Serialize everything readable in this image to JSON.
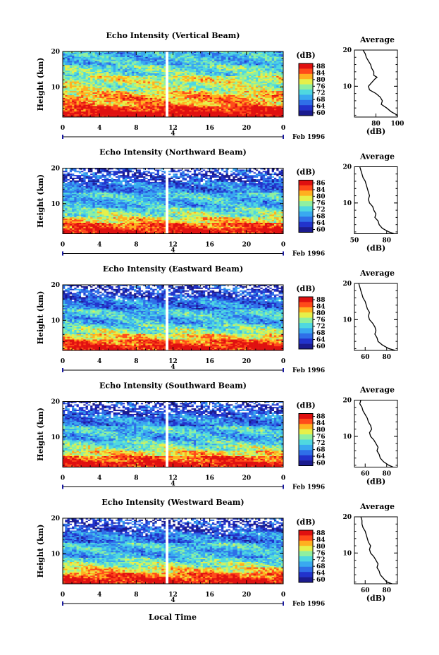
{
  "figure": {
    "xlabel": "Local Time",
    "colors": {
      "scale": [
        "#1b1b8f",
        "#2233cc",
        "#2f6fe8",
        "#39a9f0",
        "#4fd8e0",
        "#8ff0a0",
        "#e6f04a",
        "#ffb020",
        "#ff4a1a",
        "#e01010"
      ],
      "date_tick": "#1a1aa0",
      "gap": "#ffffff"
    }
  },
  "chart_data": [
    {
      "type": "heatmap",
      "title": "Echo Intensity (Vertical Beam)",
      "ylabel": "Height (km)",
      "ylim": [
        1.5,
        20
      ],
      "yticks": [
        "20",
        "10"
      ],
      "xlim": [
        0,
        24
      ],
      "xticks": [
        "0",
        "4",
        "8",
        "12",
        "16",
        "20",
        "0"
      ],
      "date_label": "4",
      "month_label": "Feb 1996",
      "data_gap_hours": [
        11.2,
        11.5
      ],
      "colorbar": {
        "unit": "(dB)",
        "min": 60,
        "max": 88,
        "ticks": [
          "88",
          "84",
          "80",
          "76",
          "72",
          "68",
          "64",
          "60"
        ]
      },
      "average": {
        "title": "Average",
        "xlabel": "(dB)",
        "xlim": [
          60,
          100
        ],
        "xticks": [
          "80",
          "100"
        ],
        "yticks": [
          "20",
          "10"
        ],
        "ylim": [
          1.5,
          20
        ],
        "profile": [
          [
            20,
            68
          ],
          [
            19,
            70
          ],
          [
            18,
            71
          ],
          [
            17,
            73
          ],
          [
            16,
            75
          ],
          [
            15,
            76
          ],
          [
            14,
            78
          ],
          [
            13,
            78
          ],
          [
            12.5,
            81
          ],
          [
            12,
            79
          ],
          [
            11,
            76
          ],
          [
            10,
            73
          ],
          [
            9,
            74
          ],
          [
            8,
            80
          ],
          [
            7,
            84
          ],
          [
            6,
            86
          ],
          [
            5,
            85
          ],
          [
            4,
            90
          ],
          [
            3,
            94
          ],
          [
            2,
            100
          ],
          [
            1.5,
            102
          ]
        ]
      }
    },
    {
      "type": "heatmap",
      "title": "Echo Intensity (Northward Beam)",
      "ylabel": "Height (km)",
      "ylim": [
        1.5,
        20
      ],
      "yticks": [
        "20",
        "10"
      ],
      "xlim": [
        0,
        24
      ],
      "xticks": [
        "0",
        "4",
        "8",
        "12",
        "16",
        "20",
        "0"
      ],
      "date_label": "4",
      "month_label": "Feb 1996",
      "data_gap_hours": [
        11.2,
        11.5
      ],
      "colorbar": {
        "unit": "(dB)",
        "min": 50,
        "max": 86,
        "ticks": [
          "86",
          "84",
          "80",
          "76",
          "72",
          "68",
          "64",
          "60"
        ]
      },
      "average": {
        "title": "Average",
        "xlabel": "(dB)",
        "xlim": [
          50,
          90
        ],
        "xticks": [
          "50",
          "80"
        ],
        "yticks": [
          "20",
          "10"
        ],
        "ylim": [
          1.5,
          20
        ],
        "profile": [
          [
            20,
            55
          ],
          [
            19,
            56
          ],
          [
            18,
            57
          ],
          [
            17,
            58
          ],
          [
            16,
            60
          ],
          [
            15,
            61
          ],
          [
            14,
            62
          ],
          [
            13,
            63
          ],
          [
            12,
            64
          ],
          [
            11,
            63
          ],
          [
            10,
            64
          ],
          [
            9,
            67
          ],
          [
            8,
            68
          ],
          [
            7,
            70
          ],
          [
            6,
            69
          ],
          [
            5,
            72
          ],
          [
            4,
            73
          ],
          [
            3,
            76
          ],
          [
            2,
            82
          ],
          [
            1.5,
            87
          ]
        ]
      }
    },
    {
      "type": "heatmap",
      "title": "Echo Intensity (Eastward Beam)",
      "ylabel": "Height (km)",
      "ylim": [
        1.5,
        20
      ],
      "yticks": [
        "20",
        "10"
      ],
      "xlim": [
        0,
        24
      ],
      "xticks": [
        "0",
        "4",
        "8",
        "12",
        "16",
        "20",
        "0"
      ],
      "date_label": "4",
      "month_label": "Feb 1996",
      "data_gap_hours": [
        11.2,
        11.5
      ],
      "colorbar": {
        "unit": "(dB)",
        "min": 50,
        "max": 88,
        "ticks": [
          "88",
          "84",
          "80",
          "76",
          "72",
          "68",
          "64",
          "60"
        ]
      },
      "average": {
        "title": "Average",
        "xlabel": "",
        "xlim": [
          50,
          90
        ],
        "xticks": [
          "60",
          "80"
        ],
        "yticks": [
          "20",
          "10"
        ],
        "ylim": [
          1.5,
          20
        ],
        "profile": [
          [
            20,
            54
          ],
          [
            19,
            55
          ],
          [
            18,
            56
          ],
          [
            17,
            57
          ],
          [
            16,
            58
          ],
          [
            15,
            60
          ],
          [
            14,
            61
          ],
          [
            13,
            62
          ],
          [
            12,
            64
          ],
          [
            11,
            63
          ],
          [
            10,
            64
          ],
          [
            9,
            67
          ],
          [
            8,
            69
          ],
          [
            7,
            70
          ],
          [
            6,
            69
          ],
          [
            5,
            71
          ],
          [
            4,
            72
          ],
          [
            3,
            76
          ],
          [
            2,
            82
          ],
          [
            1.5,
            88
          ]
        ]
      }
    },
    {
      "type": "heatmap",
      "title": "Echo Intensity (Southward Beam)",
      "ylabel": "Height (km)",
      "ylim": [
        1.5,
        20
      ],
      "yticks": [
        "20",
        "10"
      ],
      "xlim": [
        0,
        24
      ],
      "xticks": [
        "0",
        "4",
        "8",
        "12",
        "16",
        "20",
        "0"
      ],
      "date_label": "4",
      "month_label": "Feb 1996",
      "data_gap_hours": [
        11.2,
        11.5
      ],
      "colorbar": {
        "unit": "(dB)",
        "min": 50,
        "max": 88,
        "ticks": [
          "88",
          "84",
          "80",
          "76",
          "72",
          "68",
          "64",
          "60"
        ]
      },
      "average": {
        "title": "Average",
        "xlabel": "(dB)",
        "xlim": [
          50,
          90
        ],
        "xticks": [
          "60",
          "80"
        ],
        "yticks": [
          "20",
          "10"
        ],
        "ylim": [
          1.5,
          20
        ],
        "profile": [
          [
            20,
            56
          ],
          [
            19,
            55
          ],
          [
            18,
            57
          ],
          [
            17,
            58
          ],
          [
            16,
            60
          ],
          [
            15,
            62
          ],
          [
            14,
            63
          ],
          [
            13,
            65
          ],
          [
            12,
            66
          ],
          [
            11,
            64
          ],
          [
            10,
            65
          ],
          [
            9,
            68
          ],
          [
            8,
            70
          ],
          [
            7,
            72
          ],
          [
            6,
            71
          ],
          [
            5,
            73
          ],
          [
            4,
            74
          ],
          [
            3,
            77
          ],
          [
            2,
            82
          ],
          [
            1.5,
            86
          ]
        ]
      }
    },
    {
      "type": "heatmap",
      "title": "Echo Intensity (Westward Beam)",
      "ylabel": "Height (km)",
      "ylim": [
        1.5,
        20
      ],
      "yticks": [
        "20",
        "10"
      ],
      "xlim": [
        0,
        24
      ],
      "xticks": [
        "0",
        "4",
        "8",
        "12",
        "16",
        "20",
        "0"
      ],
      "date_label": "4",
      "month_label": "Feb 1996",
      "data_gap_hours": [
        11.2,
        11.5
      ],
      "colorbar": {
        "unit": "(dB)",
        "min": 50,
        "max": 88,
        "ticks": [
          "88",
          "84",
          "80",
          "76",
          "72",
          "68",
          "64",
          "60"
        ]
      },
      "average": {
        "title": "Average",
        "xlabel": "(dB)",
        "xlim": [
          50,
          90
        ],
        "xticks": [
          "60",
          "80"
        ],
        "yticks": [
          "20",
          "10"
        ],
        "ylim": [
          1.5,
          20
        ],
        "profile": [
          [
            20,
            56
          ],
          [
            19,
            57
          ],
          [
            18,
            57
          ],
          [
            17,
            58
          ],
          [
            16,
            60
          ],
          [
            15,
            61
          ],
          [
            14,
            62
          ],
          [
            13,
            63
          ],
          [
            12,
            65
          ],
          [
            11,
            64
          ],
          [
            10,
            65
          ],
          [
            9,
            68
          ],
          [
            8,
            70
          ],
          [
            7,
            72
          ],
          [
            6,
            71
          ],
          [
            5,
            73
          ],
          [
            4,
            74
          ],
          [
            3,
            77
          ],
          [
            2,
            80
          ],
          [
            1.5,
            85
          ]
        ]
      }
    }
  ]
}
